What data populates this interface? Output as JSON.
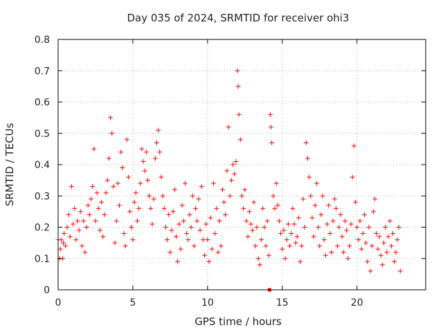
{
  "chart_data": {
    "type": "scatter",
    "title": "Day 035 of 2024, SRMTID for receiver ohi3",
    "xlabel": "GPS time / hours",
    "ylabel": "SRMTID / TECUs",
    "xlim": [
      0,
      24.6
    ],
    "ylim": [
      0,
      0.8
    ],
    "xticks": [
      0,
      5,
      10,
      15,
      20
    ],
    "xtick_labels": [
      "0",
      "5",
      "10",
      "15",
      "20"
    ],
    "yticks": [
      0,
      0.1,
      0.2,
      0.3,
      0.4,
      0.5,
      0.6,
      0.7,
      0.8
    ],
    "ytick_labels": [
      "0",
      "0.1",
      "0.2",
      "0.3",
      "0.4",
      "0.5",
      "0.6",
      "0.7",
      "0.8"
    ],
    "grid": true,
    "marker": "+",
    "color": "#ff0000",
    "series": [
      {
        "name": "SRMTID",
        "points": [
          [
            0.0,
            0.16
          ],
          [
            0.1,
            0.1
          ],
          [
            0.15,
            0.13
          ],
          [
            0.2,
            0.16
          ],
          [
            0.3,
            0.1
          ],
          [
            0.35,
            0.15
          ],
          [
            0.4,
            0.18
          ],
          [
            0.5,
            0.14
          ],
          [
            0.6,
            0.2
          ],
          [
            0.7,
            0.24
          ],
          [
            0.8,
            0.17
          ],
          [
            0.9,
            0.33
          ],
          [
            1.0,
            0.21
          ],
          [
            1.1,
            0.26
          ],
          [
            1.2,
            0.16
          ],
          [
            1.3,
            0.22
          ],
          [
            1.4,
            0.19
          ],
          [
            1.5,
            0.25
          ],
          [
            1.6,
            0.14
          ],
          [
            1.7,
            0.22
          ],
          [
            1.8,
            0.12
          ],
          [
            1.9,
            0.2
          ],
          [
            2.0,
            0.27
          ],
          [
            2.1,
            0.24
          ],
          [
            2.2,
            0.29
          ],
          [
            2.3,
            0.33
          ],
          [
            2.4,
            0.45
          ],
          [
            2.5,
            0.22
          ],
          [
            2.6,
            0.31
          ],
          [
            2.7,
            0.26
          ],
          [
            2.8,
            0.19
          ],
          [
            2.9,
            0.28
          ],
          [
            3.0,
            0.17
          ],
          [
            3.1,
            0.24
          ],
          [
            3.2,
            0.31
          ],
          [
            3.3,
            0.35
          ],
          [
            3.4,
            0.42
          ],
          [
            3.5,
            0.55
          ],
          [
            3.6,
            0.5
          ],
          [
            3.7,
            0.33
          ],
          [
            3.8,
            0.15
          ],
          [
            3.9,
            0.22
          ],
          [
            4.0,
            0.34
          ],
          [
            4.1,
            0.27
          ],
          [
            4.2,
            0.44
          ],
          [
            4.3,
            0.39
          ],
          [
            4.4,
            0.18
          ],
          [
            4.5,
            0.14
          ],
          [
            4.6,
            0.48
          ],
          [
            4.7,
            0.36
          ],
          [
            4.8,
            0.25
          ],
          [
            4.9,
            0.2
          ],
          [
            5.0,
            0.16
          ],
          [
            5.1,
            0.28
          ],
          [
            5.2,
            0.31
          ],
          [
            5.3,
            0.22
          ],
          [
            5.4,
            0.26
          ],
          [
            5.5,
            0.34
          ],
          [
            5.6,
            0.45
          ],
          [
            5.7,
            0.41
          ],
          [
            5.8,
            0.38
          ],
          [
            5.9,
            0.44
          ],
          [
            6.0,
            0.35
          ],
          [
            6.1,
            0.3
          ],
          [
            6.2,
            0.26
          ],
          [
            6.3,
            0.21
          ],
          [
            6.4,
            0.29
          ],
          [
            6.5,
            0.42
          ],
          [
            6.6,
            0.47
          ],
          [
            6.7,
            0.51
          ],
          [
            6.8,
            0.44
          ],
          [
            6.9,
            0.36
          ],
          [
            7.0,
            0.3
          ],
          [
            7.1,
            0.26
          ],
          [
            7.2,
            0.2
          ],
          [
            7.3,
            0.16
          ],
          [
            7.4,
            0.24
          ],
          [
            7.5,
            0.12
          ],
          [
            7.6,
            0.19
          ],
          [
            7.7,
            0.25
          ],
          [
            7.8,
            0.32
          ],
          [
            7.9,
            0.17
          ],
          [
            8.0,
            0.09
          ],
          [
            8.1,
            0.21
          ],
          [
            8.2,
            0.13
          ],
          [
            8.3,
            0.27
          ],
          [
            8.4,
            0.22
          ],
          [
            8.5,
            0.34
          ],
          [
            8.6,
            0.18
          ],
          [
            8.7,
            0.16
          ],
          [
            8.8,
            0.24
          ],
          [
            8.9,
            0.2
          ],
          [
            9.0,
            0.3
          ],
          [
            9.1,
            0.14
          ],
          [
            9.2,
            0.26
          ],
          [
            9.3,
            0.22
          ],
          [
            9.4,
            0.29
          ],
          [
            9.5,
            0.19
          ],
          [
            9.6,
            0.33
          ],
          [
            9.7,
            0.16
          ],
          [
            9.8,
            0.11
          ],
          [
            9.9,
            0.21
          ],
          [
            10.0,
            0.16
          ],
          [
            10.1,
            0.09
          ],
          [
            10.2,
            0.23
          ],
          [
            10.3,
            0.13
          ],
          [
            10.4,
            0.34
          ],
          [
            10.5,
            0.18
          ],
          [
            10.6,
            0.26
          ],
          [
            10.7,
            0.12
          ],
          [
            10.8,
            0.22
          ],
          [
            10.9,
            0.14
          ],
          [
            11.0,
            0.32
          ],
          [
            11.1,
            0.28
          ],
          [
            11.2,
            0.24
          ],
          [
            11.3,
            0.38
          ],
          [
            11.4,
            0.52
          ],
          [
            11.5,
            0.3
          ],
          [
            11.6,
            0.35
          ],
          [
            11.7,
            0.4
          ],
          [
            11.8,
            0.37
          ],
          [
            11.9,
            0.41
          ],
          [
            12.0,
            0.7
          ],
          [
            12.05,
            0.65
          ],
          [
            12.1,
            0.56
          ],
          [
            12.2,
            0.48
          ],
          [
            12.3,
            0.3
          ],
          [
            12.4,
            0.26
          ],
          [
            12.5,
            0.32
          ],
          [
            12.6,
            0.22
          ],
          [
            12.7,
            0.17
          ],
          [
            12.8,
            0.25
          ],
          [
            12.9,
            0.21
          ],
          [
            13.0,
            0.19
          ],
          [
            13.1,
            0.28
          ],
          [
            13.2,
            0.14
          ],
          [
            13.3,
            0.2
          ],
          [
            13.4,
            0.1
          ],
          [
            13.5,
            0.08
          ],
          [
            13.6,
            0.16
          ],
          [
            13.7,
            0.26
          ],
          [
            13.8,
            0.2
          ],
          [
            13.9,
            0.14
          ],
          [
            14.0,
            0.22
          ],
          [
            14.1,
            0.11
          ],
          [
            14.2,
            0.56
          ],
          [
            14.25,
            0.52
          ],
          [
            14.3,
            0.47
          ],
          [
            14.4,
            0.3
          ],
          [
            14.5,
            0.26
          ],
          [
            14.6,
            0.34
          ],
          [
            14.7,
            0.27
          ],
          [
            14.8,
            0.22
          ],
          [
            14.9,
            0.18
          ],
          [
            15.0,
            0.13
          ],
          [
            15.1,
            0.19
          ],
          [
            15.2,
            0.1
          ],
          [
            15.3,
            0.16
          ],
          [
            15.4,
            0.21
          ],
          [
            15.5,
            0.14
          ],
          [
            15.6,
            0.18
          ],
          [
            15.7,
            0.26
          ],
          [
            15.8,
            0.21
          ],
          [
            15.9,
            0.15
          ],
          [
            16.0,
            0.17
          ],
          [
            16.1,
            0.23
          ],
          [
            16.2,
            0.09
          ],
          [
            16.3,
            0.14
          ],
          [
            16.4,
            0.29
          ],
          [
            16.5,
            0.2
          ],
          [
            16.6,
            0.47
          ],
          [
            16.7,
            0.42
          ],
          [
            16.8,
            0.36
          ],
          [
            16.9,
            0.3
          ],
          [
            17.0,
            0.23
          ],
          [
            17.1,
            0.17
          ],
          [
            17.2,
            0.27
          ],
          [
            17.3,
            0.34
          ],
          [
            17.4,
            0.2
          ],
          [
            17.5,
            0.14
          ],
          [
            17.6,
            0.24
          ],
          [
            17.7,
            0.3
          ],
          [
            17.8,
            0.16
          ],
          [
            17.9,
            0.11
          ],
          [
            18.0,
            0.21
          ],
          [
            18.1,
            0.27
          ],
          [
            18.2,
            0.18
          ],
          [
            18.3,
            0.12
          ],
          [
            18.4,
            0.22
          ],
          [
            18.5,
            0.29
          ],
          [
            18.6,
            0.26
          ],
          [
            18.7,
            0.14
          ],
          [
            18.8,
            0.2
          ],
          [
            18.9,
            0.24
          ],
          [
            19.0,
            0.17
          ],
          [
            19.1,
            0.12
          ],
          [
            19.2,
            0.22
          ],
          [
            19.3,
            0.19
          ],
          [
            19.4,
            0.1
          ],
          [
            19.5,
            0.14
          ],
          [
            19.6,
            0.21
          ],
          [
            19.7,
            0.36
          ],
          [
            19.8,
            0.46
          ],
          [
            19.9,
            0.28
          ],
          [
            20.0,
            0.2
          ],
          [
            20.1,
            0.16
          ],
          [
            20.2,
            0.22
          ],
          [
            20.3,
            0.13
          ],
          [
            20.4,
            0.18
          ],
          [
            20.5,
            0.24
          ],
          [
            20.6,
            0.15
          ],
          [
            20.7,
            0.09
          ],
          [
            20.8,
            0.2
          ],
          [
            20.9,
            0.06
          ],
          [
            21.0,
            0.14
          ],
          [
            21.1,
            0.25
          ],
          [
            21.2,
            0.29
          ],
          [
            21.3,
            0.18
          ],
          [
            21.4,
            0.13
          ],
          [
            21.5,
            0.17
          ],
          [
            21.6,
            0.11
          ],
          [
            21.7,
            0.08
          ],
          [
            21.8,
            0.15
          ],
          [
            21.9,
            0.2
          ],
          [
            22.0,
            0.12
          ],
          [
            22.1,
            0.17
          ],
          [
            22.2,
            0.22
          ],
          [
            22.3,
            0.14
          ],
          [
            22.4,
            0.18
          ],
          [
            22.5,
            0.09
          ],
          [
            22.6,
            0.12
          ],
          [
            22.7,
            0.16
          ],
          [
            22.8,
            0.2
          ],
          [
            22.9,
            0.06
          ]
        ]
      }
    ],
    "outlier_marker": {
      "x": 14.15,
      "y": 0.0,
      "shape": "square"
    }
  }
}
